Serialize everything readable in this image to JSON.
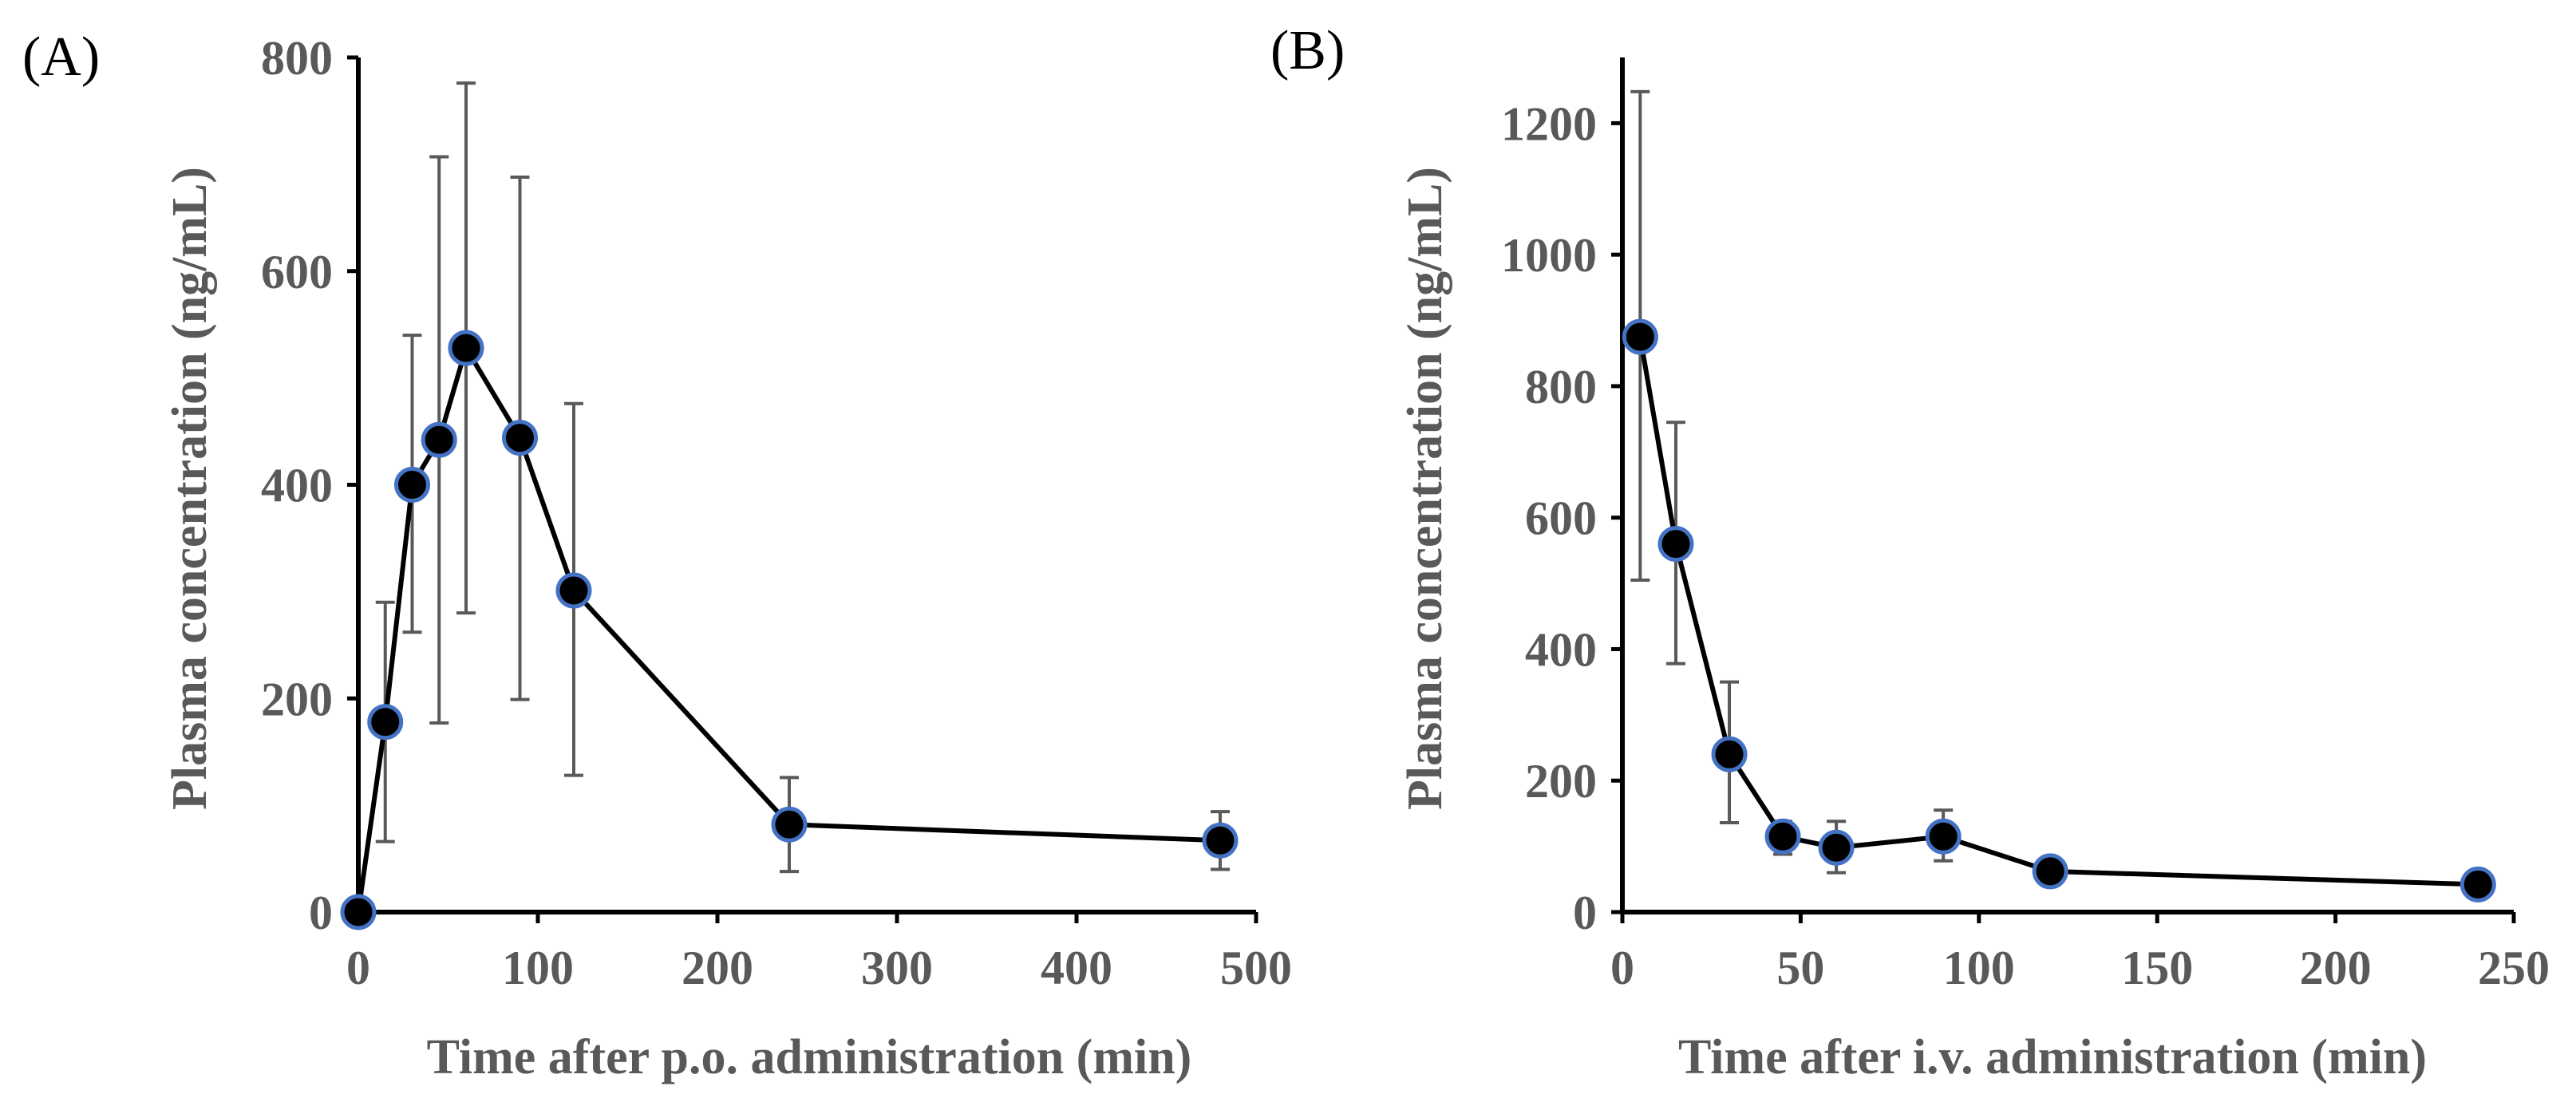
{
  "colors": {
    "axis": "#000000",
    "text": "#595959",
    "marker_fill": "#000000",
    "marker_edge": "#4472C4",
    "error_bar": "#595959"
  },
  "chart_data": [
    {
      "panel_label": "(A)",
      "type": "line",
      "xlabel": "Time after p.o. administration (min)",
      "ylabel": "Plasma concentration (ng/mL)",
      "xlim": [
        0,
        500
      ],
      "ylim": [
        0,
        800
      ],
      "xticks": [
        0,
        100,
        200,
        300,
        400,
        500
      ],
      "yticks": [
        0,
        200,
        400,
        600,
        800
      ],
      "series": [
        {
          "name": "p.o.",
          "x": [
            0,
            15,
            30,
            45,
            60,
            90,
            120,
            240,
            480
          ],
          "y": [
            0,
            178,
            400,
            442,
            528,
            444,
            301,
            82,
            67
          ],
          "err_upper": [
            0,
            290,
            540,
            707,
            776,
            688,
            476,
            126,
            94
          ],
          "err_lower": [
            0,
            66,
            262,
            177,
            280,
            199,
            128,
            38,
            40
          ]
        }
      ]
    },
    {
      "panel_label": "(B)",
      "type": "line",
      "xlabel": "Time after i.v. administration (min)",
      "ylabel": "Plasma concentration (ng/mL)",
      "xlim": [
        0,
        250
      ],
      "ylim": [
        0,
        1300
      ],
      "xticks": [
        0,
        50,
        100,
        150,
        200,
        250
      ],
      "yticks": [
        0,
        200,
        400,
        600,
        800,
        1000,
        1200
      ],
      "series": [
        {
          "name": "i.v.",
          "x": [
            5,
            15,
            30,
            45,
            60,
            90,
            120,
            240
          ],
          "y": [
            875,
            560,
            240,
            115,
            98,
            115,
            62,
            42
          ],
          "err_upper": [
            1248,
            745,
            350,
            138,
            138,
            155,
            82,
            50
          ],
          "err_lower": [
            505,
            378,
            136,
            88,
            60,
            78,
            48,
            36
          ]
        }
      ]
    }
  ]
}
